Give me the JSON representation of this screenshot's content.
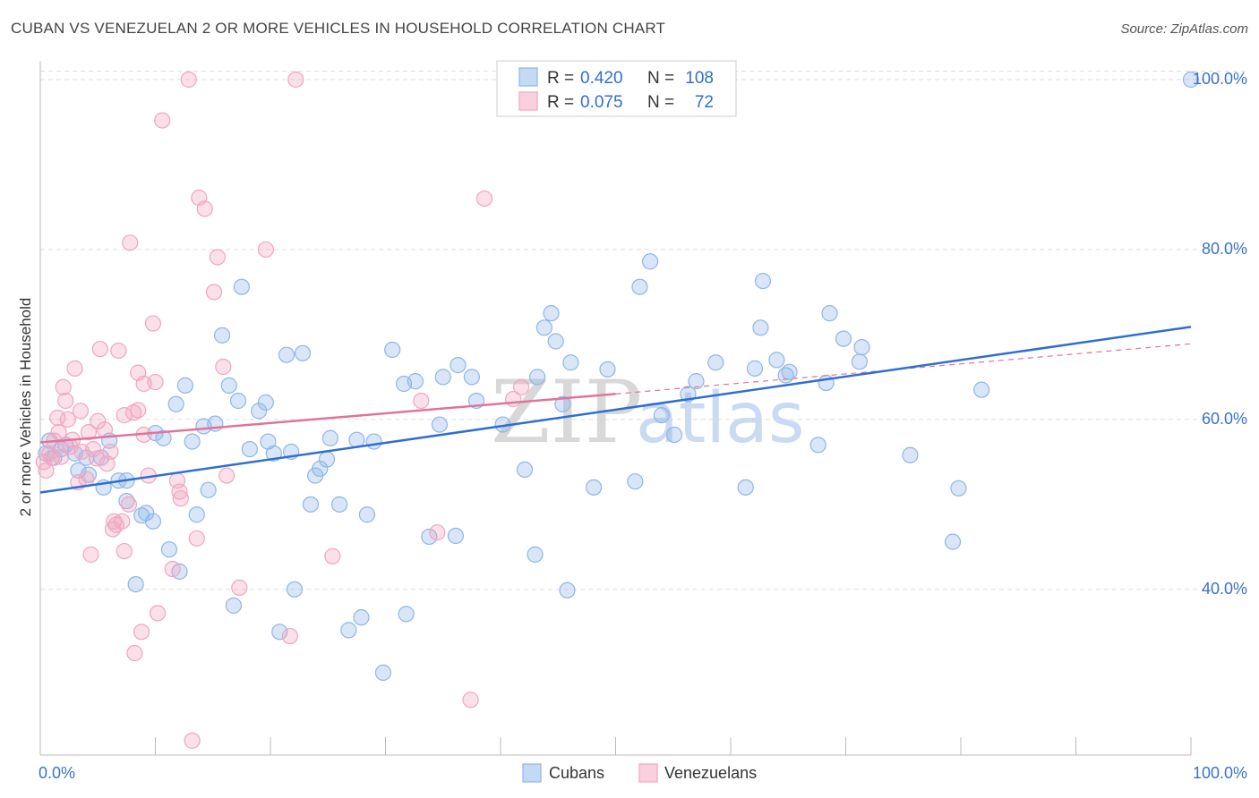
{
  "title": "CUBAN VS VENEZUELAN 2 OR MORE VEHICLES IN HOUSEHOLD CORRELATION CHART",
  "source": "Source: ZipAtlas.com",
  "watermark": {
    "zip": "ZIP",
    "atlas": "atlas"
  },
  "legend": {
    "r_label": "R =",
    "n_label": "N =",
    "rows": [
      {
        "r": "0.420",
        "n": "108",
        "color": "#8fb6e8"
      },
      {
        "r": "0.075",
        "n": "72",
        "color": "#f2a5bf"
      }
    ]
  },
  "bottom_legend": [
    "Cubans",
    "Venezuelans"
  ],
  "chart_data": {
    "type": "scatter",
    "title": "CUBAN VS VENEZUELAN 2 OR MORE VEHICLES IN HOUSEHOLD CORRELATION CHART",
    "xlabel": "",
    "ylabel": "2 or more Vehicles in Household",
    "xlim": [
      0,
      100
    ],
    "ylim": [
      20.5,
      102
    ],
    "x_tick_labels": [
      "0.0%",
      "100.0%"
    ],
    "y_ticks": [
      40,
      60,
      80,
      100
    ],
    "y_tick_labels": [
      "40.0%",
      "60.0%",
      "80.0%",
      "100.0%"
    ],
    "grid": true,
    "legend_position": "top-center",
    "series": [
      {
        "name": "Cubans",
        "color": "#8fb6e8",
        "line_color": "#2f6ed2",
        "trend": {
          "x0": 0,
          "y0": 51.4,
          "x1": 100,
          "y1": 70.9
        },
        "points": [
          [
            0.5,
            56
          ],
          [
            0.8,
            57.5
          ],
          [
            1.2,
            55.5
          ],
          [
            1.8,
            56.5
          ],
          [
            2.2,
            57
          ],
          [
            3,
            56
          ],
          [
            3.3,
            54
          ],
          [
            4,
            55.5
          ],
          [
            4.2,
            53.5
          ],
          [
            5.3,
            55.5
          ],
          [
            5.5,
            52
          ],
          [
            6,
            57.5
          ],
          [
            6.8,
            52.8
          ],
          [
            7.5,
            52.8
          ],
          [
            7.5,
            50.4
          ],
          [
            8.3,
            40.6
          ],
          [
            8.8,
            48.7
          ],
          [
            9.2,
            49
          ],
          [
            9.8,
            48
          ],
          [
            10,
            58.4
          ],
          [
            10.7,
            57.8
          ],
          [
            11.2,
            44.7
          ],
          [
            11.8,
            61.8
          ],
          [
            12.1,
            42.1
          ],
          [
            12.6,
            64
          ],
          [
            13.2,
            57.4
          ],
          [
            13.6,
            48.8
          ],
          [
            14.2,
            59.2
          ],
          [
            14.6,
            51.7
          ],
          [
            15.2,
            59.5
          ],
          [
            15.8,
            69.9
          ],
          [
            16.4,
            64
          ],
          [
            16.8,
            38.1
          ],
          [
            17.2,
            62.2
          ],
          [
            17.5,
            75.6
          ],
          [
            18.2,
            56.5
          ],
          [
            19,
            61
          ],
          [
            19.6,
            62
          ],
          [
            19.8,
            57.4
          ],
          [
            20.3,
            56
          ],
          [
            20.8,
            35
          ],
          [
            21.4,
            67.6
          ],
          [
            21.8,
            56.2
          ],
          [
            22.1,
            40
          ],
          [
            22.8,
            67.8
          ],
          [
            23.5,
            50
          ],
          [
            23.9,
            53.4
          ],
          [
            24.3,
            54.2
          ],
          [
            24.9,
            55.3
          ],
          [
            25.2,
            57.8
          ],
          [
            26,
            50
          ],
          [
            26.8,
            35.2
          ],
          [
            27.5,
            57.6
          ],
          [
            27.9,
            36.7
          ],
          [
            28.4,
            48.8
          ],
          [
            29,
            57.4
          ],
          [
            29.8,
            30.2
          ],
          [
            30.6,
            68.2
          ],
          [
            31.6,
            64.2
          ],
          [
            31.8,
            37.1
          ],
          [
            32.6,
            64.5
          ],
          [
            33.8,
            46.2
          ],
          [
            34.7,
            59.4
          ],
          [
            35,
            65
          ],
          [
            36.1,
            46.3
          ],
          [
            36.3,
            66.4
          ],
          [
            37.5,
            65
          ],
          [
            37.9,
            62.2
          ],
          [
            40.2,
            59.4
          ],
          [
            42.1,
            54.1
          ],
          [
            43,
            44.1
          ],
          [
            43.2,
            65
          ],
          [
            43.8,
            70.8
          ],
          [
            44.4,
            72.5
          ],
          [
            44.8,
            69.2
          ],
          [
            45.4,
            61.8
          ],
          [
            45.8,
            39.9
          ],
          [
            46.1,
            66.7
          ],
          [
            48.1,
            52
          ],
          [
            49.3,
            65.9
          ],
          [
            51.7,
            52.7
          ],
          [
            52.1,
            75.6
          ],
          [
            53,
            78.6
          ],
          [
            54,
            60.5
          ],
          [
            55.1,
            58.2
          ],
          [
            56.3,
            63
          ],
          [
            57,
            64.5
          ],
          [
            58.7,
            66.7
          ],
          [
            61.3,
            52
          ],
          [
            62.1,
            66
          ],
          [
            62.6,
            70.8
          ],
          [
            62.8,
            76.3
          ],
          [
            64,
            67
          ],
          [
            64.8,
            65.2
          ],
          [
            65.1,
            65.6
          ],
          [
            67.6,
            57
          ],
          [
            68.3,
            64.3
          ],
          [
            68.6,
            72.5
          ],
          [
            69.8,
            69.5
          ],
          [
            71.2,
            66.8
          ],
          [
            71.4,
            68.5
          ],
          [
            75.6,
            55.8
          ],
          [
            79.3,
            45.6
          ],
          [
            79.8,
            51.9
          ],
          [
            81.8,
            63.5
          ],
          [
            100,
            100
          ]
        ]
      },
      {
        "name": "Venezuelans",
        "color": "#f2a5bf",
        "line_color": "#e3729b",
        "trend": {
          "x0": 0,
          "y0": 57.3,
          "x1": 50,
          "y1": 63
        },
        "trend_ext": {
          "x0": 50,
          "y0": 63,
          "x1": 100,
          "y1": 68.9
        },
        "points": [
          [
            0.3,
            55
          ],
          [
            0.5,
            54
          ],
          [
            0.8,
            56
          ],
          [
            1,
            55.5
          ],
          [
            1.2,
            57.5
          ],
          [
            1.5,
            60.2
          ],
          [
            1.6,
            58.5
          ],
          [
            1.8,
            55.6
          ],
          [
            2,
            63.8
          ],
          [
            2.2,
            62.2
          ],
          [
            2.4,
            60
          ],
          [
            2.6,
            56.8
          ],
          [
            2.8,
            57.6
          ],
          [
            3,
            66
          ],
          [
            3.3,
            52.6
          ],
          [
            3.5,
            61
          ],
          [
            3.6,
            56.2
          ],
          [
            4,
            53
          ],
          [
            4.2,
            58.5
          ],
          [
            4.4,
            44.1
          ],
          [
            4.6,
            56.5
          ],
          [
            4.9,
            55.4
          ],
          [
            5,
            59.8
          ],
          [
            5.2,
            68.3
          ],
          [
            5.6,
            58.8
          ],
          [
            5.8,
            54.8
          ],
          [
            6.1,
            56.2
          ],
          [
            6.3,
            47.1
          ],
          [
            6.4,
            48
          ],
          [
            6.6,
            47.6
          ],
          [
            6.8,
            68.1
          ],
          [
            7.1,
            48
          ],
          [
            7.3,
            44.5
          ],
          [
            7.3,
            60.5
          ],
          [
            7.7,
            50
          ],
          [
            7.8,
            80.8
          ],
          [
            8.1,
            60.8
          ],
          [
            8.2,
            32.5
          ],
          [
            8.5,
            61.1
          ],
          [
            8.5,
            65.5
          ],
          [
            8.8,
            35
          ],
          [
            9,
            58.2
          ],
          [
            9,
            64.2
          ],
          [
            9.4,
            53.4
          ],
          [
            9.8,
            71.3
          ],
          [
            10,
            64.4
          ],
          [
            10.2,
            37.2
          ],
          [
            10.6,
            95.2
          ],
          [
            11.5,
            42.4
          ],
          [
            11.9,
            52.8
          ],
          [
            12.1,
            51.5
          ],
          [
            12.2,
            50.7
          ],
          [
            12.9,
            100
          ],
          [
            13.2,
            22.2
          ],
          [
            13.6,
            46
          ],
          [
            13.8,
            86.1
          ],
          [
            14.3,
            84.8
          ],
          [
            15.1,
            75
          ],
          [
            15.4,
            79.1
          ],
          [
            15.9,
            66.2
          ],
          [
            16.2,
            53.4
          ],
          [
            17.3,
            40.2
          ],
          [
            19.6,
            80
          ],
          [
            21.7,
            34.5
          ],
          [
            22.2,
            100
          ],
          [
            25.4,
            43.9
          ],
          [
            33.1,
            62.2
          ],
          [
            34.5,
            46.7
          ],
          [
            37.4,
            27
          ],
          [
            38.6,
            86
          ],
          [
            41.1,
            62.4
          ],
          [
            41.8,
            63.8
          ]
        ]
      }
    ]
  }
}
